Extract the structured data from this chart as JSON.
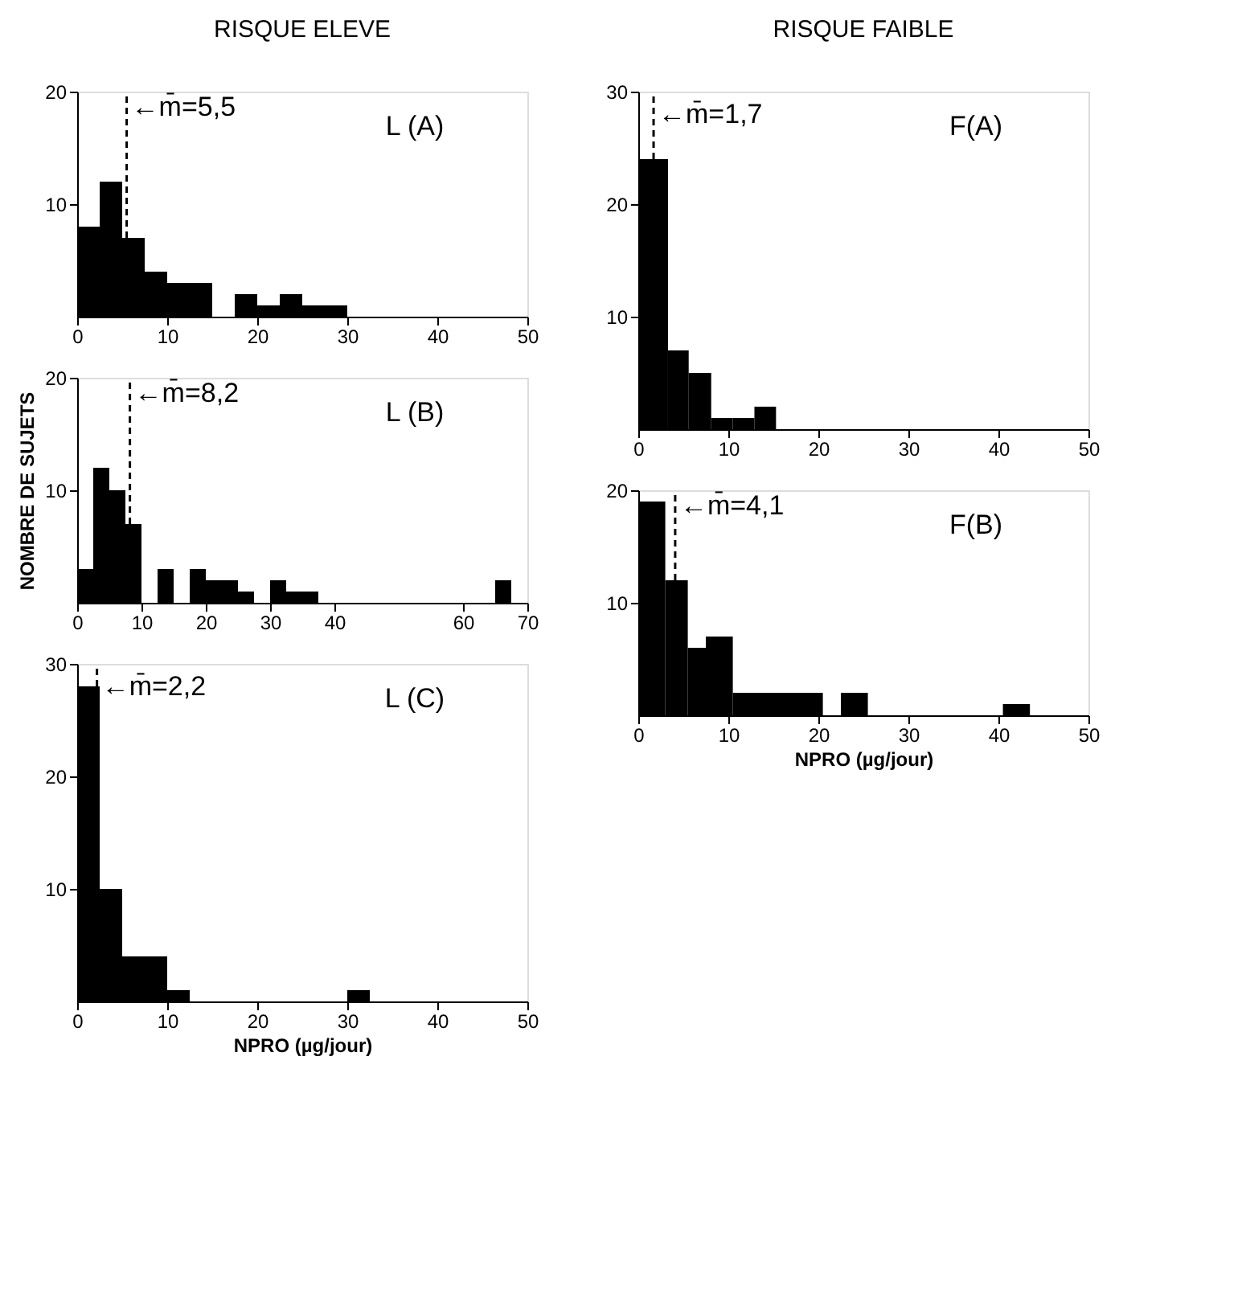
{
  "chart_data": [
    {
      "type": "histogram",
      "title": "L (A)",
      "annotations": [
        "RISQUE ELEVE"
      ],
      "color": "#000000",
      "bins": [
        0,
        2.5,
        5,
        7.5,
        10,
        12.5,
        15,
        17.5,
        20,
        22.5,
        25,
        27.5,
        30
      ],
      "values": [
        8,
        12,
        7,
        4,
        3,
        3,
        0,
        2,
        1,
        2,
        1,
        1
      ],
      "xlim": [
        0,
        50
      ],
      "xticks": [
        0,
        10,
        20,
        30,
        40,
        50
      ],
      "ylim": [
        0,
        20
      ],
      "yticks": [
        10,
        20
      ],
      "grid": false,
      "ref_lines": [
        {
          "axis": "x",
          "value": 5.5,
          "label": "←m̄=5,5",
          "line_style": "dashed"
        }
      ]
    },
    {
      "type": "histogram",
      "title": "F(A)",
      "annotations": [
        "RISQUE FAIBLE"
      ],
      "color": "#000000",
      "bins": [
        0,
        3.3,
        5.6,
        8.1,
        10.5,
        12.9,
        15.3
      ],
      "values": [
        24,
        7,
        5,
        1,
        1,
        2
      ],
      "xlim": [
        0,
        50
      ],
      "xticks": [
        0,
        10,
        20,
        30,
        40,
        50
      ],
      "ylim": [
        0,
        30
      ],
      "yticks": [
        10,
        20,
        30
      ],
      "grid": false,
      "ref_lines": [
        {
          "axis": "x",
          "value": 1.7,
          "label": "←m̄=1,7",
          "line_style": "dashed"
        }
      ]
    },
    {
      "type": "histogram",
      "title": "L (B)",
      "ylabel": "NOMBRE DE SUJETS",
      "color": "#000000",
      "bins": [
        0,
        2.5,
        5,
        7.5,
        10,
        12.5,
        15,
        17.5,
        20,
        22.5,
        25,
        27.5,
        30,
        32.5,
        35,
        37.5,
        65,
        67.5
      ],
      "values": [
        3,
        12,
        10,
        7,
        0,
        3,
        0,
        3,
        2,
        2,
        1,
        0,
        2,
        1,
        1,
        0,
        2
      ],
      "xlim": [
        0,
        70
      ],
      "xticks": [
        0,
        10,
        20,
        30,
        40,
        60,
        70
      ],
      "ylim": [
        0,
        20
      ],
      "yticks": [
        10,
        20
      ],
      "grid": false,
      "ref_lines": [
        {
          "axis": "x",
          "value": 8.2,
          "label": "←m̄=8,2",
          "line_style": "dashed"
        }
      ]
    },
    {
      "type": "histogram",
      "title": "F(B)",
      "xlabel": "NPRO (µg/jour)",
      "color": "#000000",
      "bins": [
        0,
        3,
        5.5,
        7.5,
        10.5,
        20.5,
        22.5,
        25.5,
        40.5,
        43.5
      ],
      "values": [
        19,
        12,
        6,
        7,
        2,
        0,
        2,
        0,
        1
      ],
      "xlim": [
        0,
        50
      ],
      "xticks": [
        0,
        10,
        20,
        30,
        40,
        50
      ],
      "ylim": [
        0,
        20
      ],
      "yticks": [
        10,
        20
      ],
      "grid": false,
      "ref_lines": [
        {
          "axis": "x",
          "value": 4.1,
          "label": "←m̄=4,1",
          "line_style": "dashed"
        }
      ]
    },
    {
      "type": "histogram",
      "title": "L (C)",
      "xlabel": "NPRO (µg/jour)",
      "color": "#000000",
      "bins": [
        0,
        2.5,
        5,
        7.5,
        10,
        12.5,
        15,
        17.5,
        20,
        22.5,
        25,
        27.5,
        30,
        32.5
      ],
      "values": [
        28,
        10,
        4,
        4,
        1,
        0,
        0,
        0,
        0,
        0,
        0,
        0,
        1
      ],
      "xlim": [
        0,
        50
      ],
      "xticks": [
        0,
        10,
        20,
        30,
        40,
        50
      ],
      "ylim": [
        0,
        30
      ],
      "yticks": [
        10,
        20,
        30
      ],
      "grid": false,
      "ref_lines": [
        {
          "axis": "x",
          "value": 2.2,
          "label": "←m̄=2,2",
          "line_style": "dashed"
        }
      ]
    }
  ]
}
